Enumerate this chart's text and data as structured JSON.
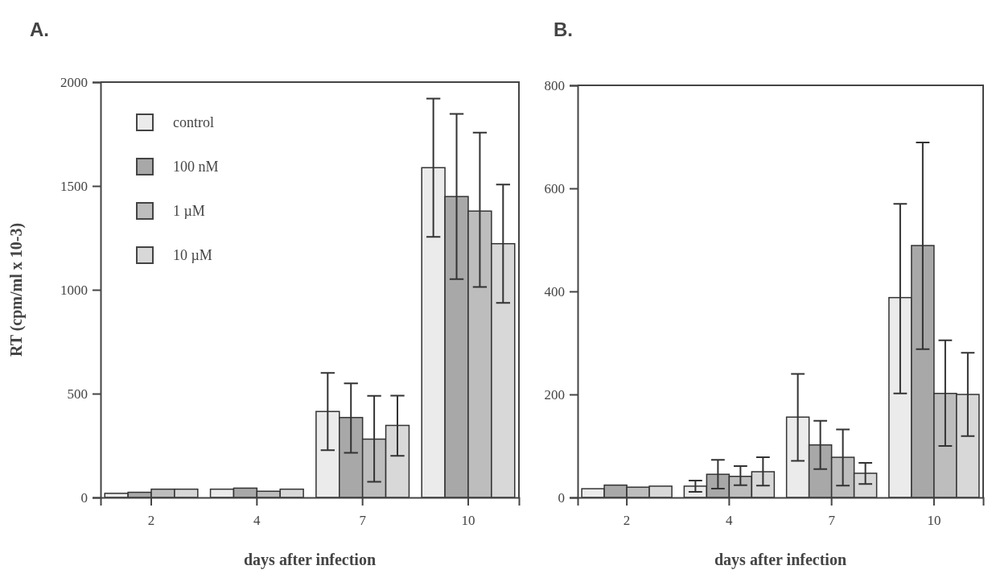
{
  "chart_data": [
    {
      "type": "bar",
      "title": "A.",
      "xlabel": "days after infection",
      "ylabel": "RT (cpm/ml x 10-3)",
      "categories": [
        "2",
        "4",
        "7",
        "10"
      ],
      "ylim": [
        0,
        2000
      ],
      "yticks": [
        0,
        500,
        1000,
        1500,
        2000
      ],
      "legend": "top left",
      "grid": false,
      "series": [
        {
          "name": "control",
          "color": "#ebebeb",
          "values": [
            20,
            40,
            414,
            1588
          ],
          "errors": [
            null,
            null,
            186,
            333
          ]
        },
        {
          "name": "100 nM",
          "color": "#a8a8a8",
          "values": [
            25,
            45,
            385,
            1449
          ],
          "errors": [
            null,
            null,
            [
              215,
              549
            ],
            [
              1051,
              1847
            ]
          ]
        },
        {
          "name": "1 µM",
          "color": "#bdbdbd",
          "values": [
            40,
            30,
            281,
            1379
          ],
          "errors": [
            null,
            null,
            [
              76,
              489
            ],
            [
              1014,
              1757
            ]
          ]
        },
        {
          "name": "10 µM",
          "color": "#d8d8d8",
          "values": [
            40,
            40,
            347,
            1222
          ],
          "errors": [
            null,
            null,
            [
              201,
              490
            ],
            [
              937,
              1507
            ]
          ]
        }
      ]
    },
    {
      "type": "bar",
      "title": "B.",
      "xlabel": "days after infection",
      "categories": [
        "2",
        "4",
        "7",
        "10"
      ],
      "ylim": [
        0,
        800
      ],
      "yticks": [
        0,
        200,
        400,
        600,
        800
      ],
      "legend": false,
      "grid": false,
      "series": [
        {
          "color": "#ebebeb",
          "values": [
            17,
            22,
            156,
            388
          ],
          "errors": [
            null,
            11,
            [
              71,
              240
            ],
            [
              202,
              570
            ]
          ]
        },
        {
          "color": "#a8a8a8",
          "values": [
            24,
            45,
            102,
            489
          ],
          "errors": [
            null,
            [
              17,
              73
            ],
            [
              55,
              149
            ],
            [
              288,
              689
            ]
          ]
        },
        {
          "color": "#bdbdbd",
          "values": [
            20,
            41,
            78,
            202
          ],
          "errors": [
            null,
            [
              24,
              61
            ],
            [
              23,
              132
            ],
            [
              100,
              305
            ]
          ]
        },
        {
          "color": "#d8d8d8",
          "values": [
            22,
            50,
            47,
            200
          ],
          "errors": [
            null,
            [
              23,
              78
            ],
            [
              26,
              67
            ],
            [
              119,
              281
            ]
          ]
        }
      ]
    }
  ]
}
